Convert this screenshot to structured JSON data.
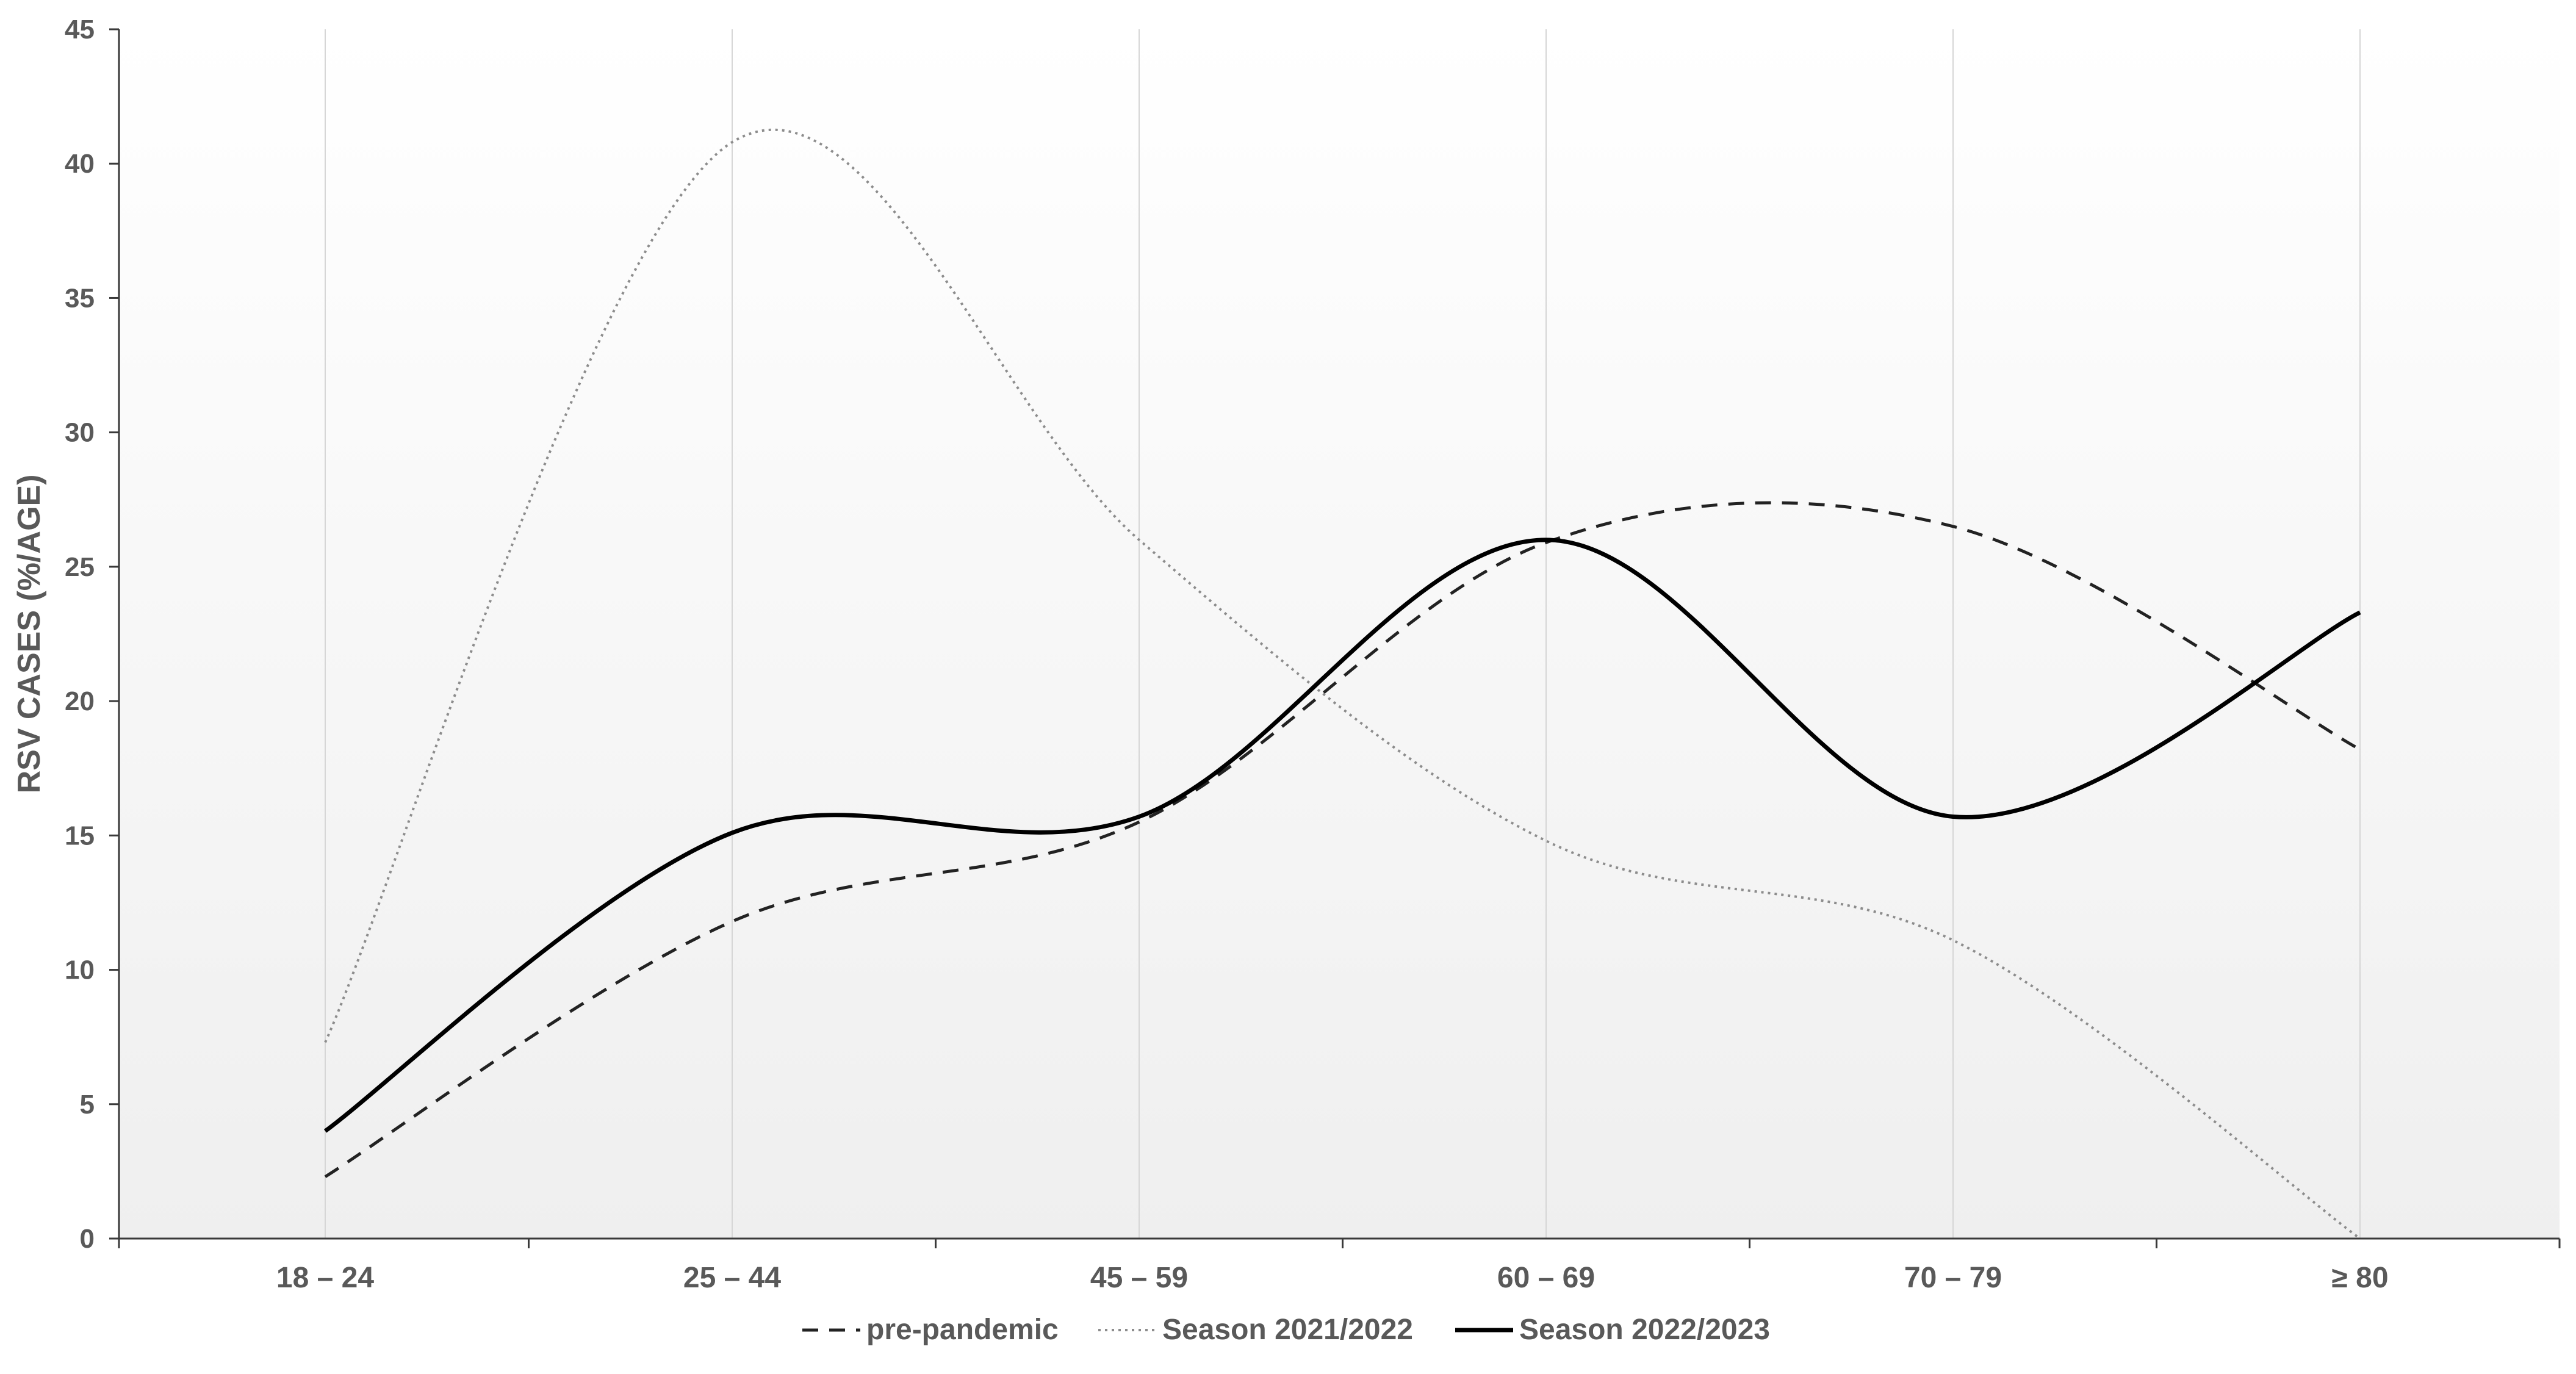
{
  "chart_data": {
    "type": "line",
    "title": "",
    "xlabel": "",
    "ylabel": "RSV CASES (%/AGE)",
    "ylim": [
      0,
      45
    ],
    "yticks": [
      0,
      5,
      10,
      15,
      20,
      25,
      30,
      35,
      40,
      45
    ],
    "ytick_labels": [
      "0",
      "5",
      "10",
      "15",
      "20",
      "25",
      "30",
      "35",
      "40",
      "45"
    ],
    "categories": [
      "18 – 24",
      "25 – 44",
      "45 – 59",
      "60 – 69",
      "70 – 79",
      "≥ 80"
    ],
    "smoothed": true,
    "grid": "vertical lines at categories",
    "legend_position": "bottom",
    "series": [
      {
        "name": "pre-pandemic",
        "values": [
          2.3,
          11.8,
          15.5,
          25.9,
          26.5,
          18.2
        ],
        "line_style": "dashed",
        "color": "#222222"
      },
      {
        "name": "Season 2021/2022",
        "values": [
          7.3,
          40.8,
          26.0,
          14.8,
          11.1,
          0.0
        ],
        "line_style": "dotted",
        "color": "#8c8c8c"
      },
      {
        "name": "Season 2022/2023",
        "values": [
          4.0,
          15.1,
          15.7,
          26.0,
          15.7,
          23.3
        ],
        "line_style": "solid",
        "color": "#000000"
      }
    ]
  }
}
